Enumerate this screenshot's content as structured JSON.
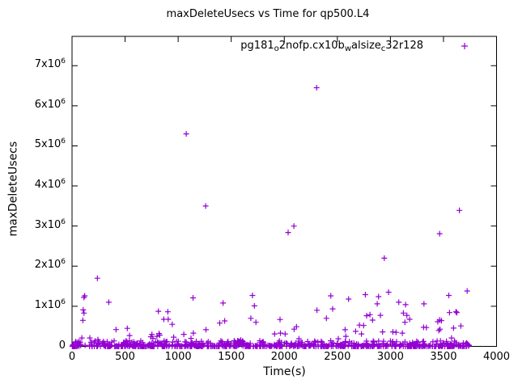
{
  "chart_data": {
    "type": "scatter",
    "title": "maxDeleteUsecs vs Time for qp500.L4",
    "xlabel": "Time(s)",
    "ylabel": "maxDeleteUsecs",
    "xlim": [
      0,
      4000
    ],
    "ylim": [
      0,
      7730000
    ],
    "grid": false,
    "legend_position": "top-right-inside",
    "x_ticks": [
      0,
      500,
      1000,
      1500,
      2000,
      2500,
      3000,
      3500,
      4000
    ],
    "y_ticks": [
      {
        "v": 0,
        "m": "0",
        "e": ""
      },
      {
        "v": 1000000,
        "m": "1x10",
        "e": "6"
      },
      {
        "v": 2000000,
        "m": "2x10",
        "e": "6"
      },
      {
        "v": 3000000,
        "m": "3x10",
        "e": "6"
      },
      {
        "v": 4000000,
        "m": "4x10",
        "e": "6"
      },
      {
        "v": 5000000,
        "m": "5x10",
        "e": "6"
      },
      {
        "v": 6000000,
        "m": "6x10",
        "e": "6"
      },
      {
        "v": 7000000,
        "m": "7x10",
        "e": "6"
      }
    ],
    "series": [
      {
        "name": "pg181_o2nofp.cx10b_walsize_c32r128",
        "label_segments": [
          {
            "text": "pg181",
            "sub": false
          },
          {
            "text": "o",
            "sub": true
          },
          {
            "text": "2nofp.cx10b",
            "sub": false
          },
          {
            "text": "w",
            "sub": true
          },
          {
            "text": "alsize",
            "sub": false
          },
          {
            "text": "c",
            "sub": true
          },
          {
            "text": "32r128",
            "sub": false
          }
        ],
        "marker": "plus",
        "color": "#9400d3",
        "points": [
          [
            92,
            210000
          ],
          [
            102,
            650000
          ],
          [
            105,
            910000
          ],
          [
            112,
            1220000
          ],
          [
            113,
            830000
          ],
          [
            120,
            1260000
          ],
          [
            168,
            210000
          ],
          [
            239,
            1700000
          ],
          [
            244,
            170000
          ],
          [
            346,
            1100000
          ],
          [
            415,
            420000
          ],
          [
            521,
            450000
          ],
          [
            542,
            270000
          ],
          [
            743,
            240000
          ],
          [
            753,
            300000
          ],
          [
            762,
            200000
          ],
          [
            800,
            250000
          ],
          [
            814,
            875000
          ],
          [
            820,
            320000
          ],
          [
            827,
            280000
          ],
          [
            865,
            675000
          ],
          [
            903,
            863000
          ],
          [
            906,
            675000
          ],
          [
            944,
            550000
          ],
          [
            958,
            230000
          ],
          [
            1053,
            300000
          ],
          [
            1076,
            5300000
          ],
          [
            1121,
            200000
          ],
          [
            1140,
            1210000
          ],
          [
            1143,
            330000
          ],
          [
            1259,
            3500000
          ],
          [
            1262,
            415000
          ],
          [
            1392,
            580000
          ],
          [
            1423,
            1080000
          ],
          [
            1438,
            635000
          ],
          [
            1560,
            140000
          ],
          [
            1590,
            160000
          ],
          [
            1685,
            700000
          ],
          [
            1700,
            1270000
          ],
          [
            1718,
            1010000
          ],
          [
            1733,
            600000
          ],
          [
            1909,
            310000
          ],
          [
            1960,
            670000
          ],
          [
            1964,
            330000
          ],
          [
            2008,
            310000
          ],
          [
            2036,
            2840000
          ],
          [
            2090,
            3000000
          ],
          [
            2093,
            430000
          ],
          [
            2115,
            490000
          ],
          [
            2138,
            190000
          ],
          [
            2305,
            6450000
          ],
          [
            2308,
            900000
          ],
          [
            2397,
            700000
          ],
          [
            2438,
            1260000
          ],
          [
            2456,
            935000
          ],
          [
            2509,
            190000
          ],
          [
            2573,
            415000
          ],
          [
            2580,
            250000
          ],
          [
            2606,
            1180000
          ],
          [
            2672,
            374000
          ],
          [
            2708,
            530000
          ],
          [
            2727,
            310000
          ],
          [
            2748,
            520000
          ],
          [
            2764,
            1290000
          ],
          [
            2776,
            763000
          ],
          [
            2807,
            790000
          ],
          [
            2832,
            655000
          ],
          [
            2876,
            1060000
          ],
          [
            2888,
            1240000
          ],
          [
            2906,
            775000
          ],
          [
            2926,
            360000
          ],
          [
            2942,
            2200000
          ],
          [
            2983,
            1350000
          ],
          [
            3023,
            360000
          ],
          [
            3053,
            350000
          ],
          [
            3079,
            1100000
          ],
          [
            3112,
            330000
          ],
          [
            3122,
            830000
          ],
          [
            3137,
            600000
          ],
          [
            3143,
            1040000
          ],
          [
            3155,
            775000
          ],
          [
            3181,
            675000
          ],
          [
            3313,
            475000
          ],
          [
            3316,
            1060000
          ],
          [
            3339,
            470000
          ],
          [
            3446,
            615000
          ],
          [
            3456,
            395000
          ],
          [
            3463,
            660000
          ],
          [
            3464,
            2810000
          ],
          [
            3467,
            430000
          ],
          [
            3481,
            640000
          ],
          [
            3550,
            1270000
          ],
          [
            3557,
            843000
          ],
          [
            3576,
            210000
          ],
          [
            3595,
            455000
          ],
          [
            3617,
            863000
          ],
          [
            3626,
            843000
          ],
          [
            3650,
            3390000
          ],
          [
            3664,
            510000
          ],
          [
            3723,
            1380000
          ]
        ],
        "dense_band": {
          "note": "dense overlapping samples hugging y=0 across the whole run",
          "t_min": 0,
          "t_max": 3745,
          "v_min": 0,
          "v_max": 140000,
          "count": 700,
          "power": 3,
          "seed": 11
        }
      }
    ]
  }
}
